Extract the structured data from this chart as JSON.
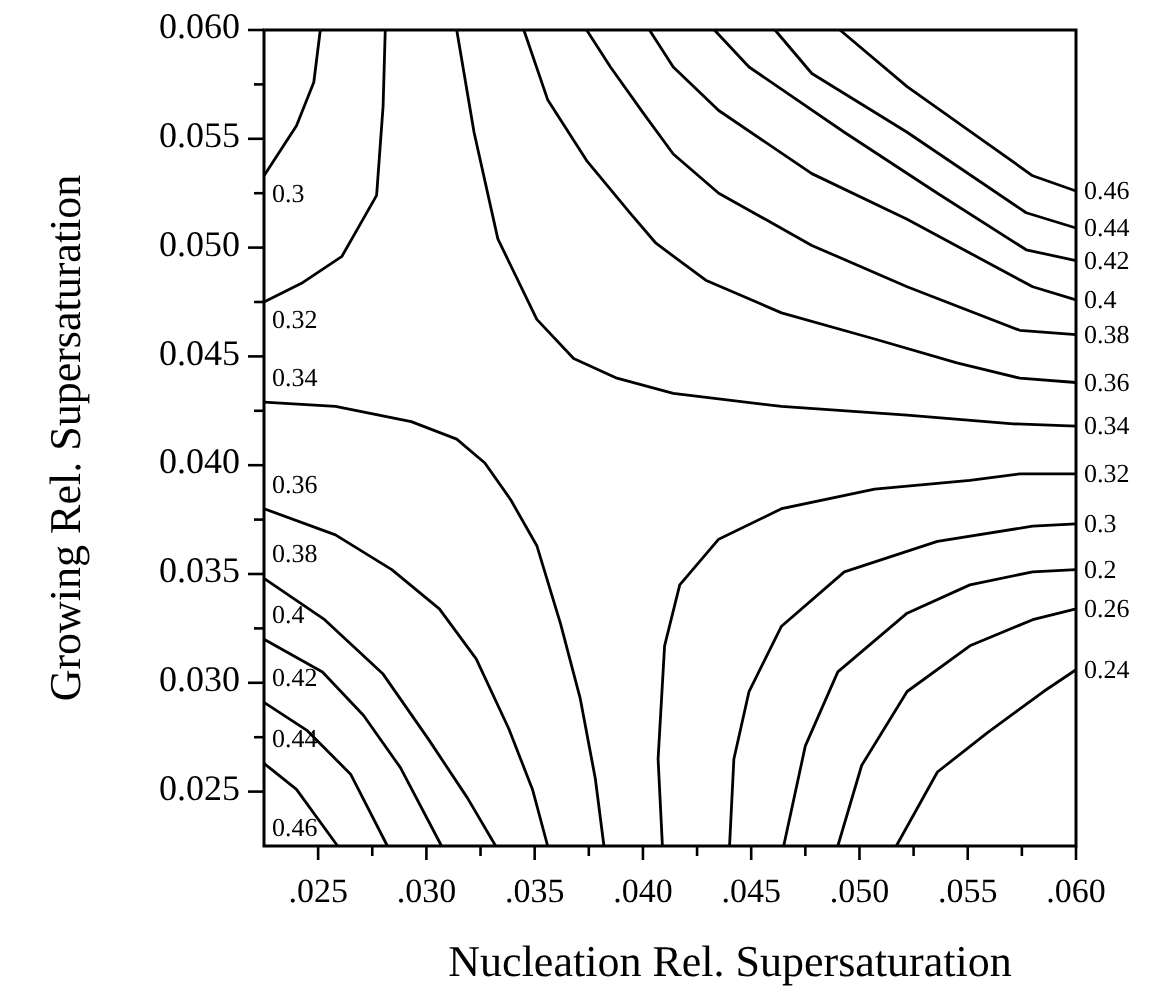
{
  "chart_data": {
    "type": "line",
    "xlabel": "Nucleation Rel. Supersaturation",
    "ylabel": "Growing Rel. Supersaturation",
    "annotations": [
      "0.46"
    ],
    "xlim": [
      0.0225,
      0.06
    ],
    "ylim": [
      0.0225,
      0.06
    ],
    "xticks": [
      {
        "value": 0.025,
        "label": ".025"
      },
      {
        "value": 0.0275,
        "label": null
      },
      {
        "value": 0.03,
        "label": ".030"
      },
      {
        "value": 0.0325,
        "label": null
      },
      {
        "value": 0.035,
        "label": ".035"
      },
      {
        "value": 0.0375,
        "label": null
      },
      {
        "value": 0.04,
        "label": ".040"
      },
      {
        "value": 0.0425,
        "label": null
      },
      {
        "value": 0.045,
        "label": ".045"
      },
      {
        "value": 0.0475,
        "label": null
      },
      {
        "value": 0.05,
        "label": ".050"
      },
      {
        "value": 0.0525,
        "label": null
      },
      {
        "value": 0.055,
        "label": ".055"
      },
      {
        "value": 0.0575,
        "label": null
      },
      {
        "value": 0.06,
        "label": ".060"
      }
    ],
    "yticks": [
      {
        "value": 0.025,
        "label": "0.025"
      },
      {
        "value": 0.0275,
        "label": null
      },
      {
        "value": 0.03,
        "label": "0.030"
      },
      {
        "value": 0.0325,
        "label": null
      },
      {
        "value": 0.035,
        "label": "0.035"
      },
      {
        "value": 0.0375,
        "label": null
      },
      {
        "value": 0.04,
        "label": "0.040"
      },
      {
        "value": 0.0425,
        "label": null
      },
      {
        "value": 0.045,
        "label": "0.045"
      },
      {
        "value": 0.0475,
        "label": null
      },
      {
        "value": 0.05,
        "label": "0.050"
      },
      {
        "value": 0.0525,
        "label": null
      },
      {
        "value": 0.055,
        "label": "0.055"
      },
      {
        "value": 0.0575,
        "label": null
      },
      {
        "value": 0.06,
        "label": "0.060"
      }
    ],
    "series": [
      {
        "name": "0.3",
        "color": "#000000",
        "x": [
          0.0225,
          0.024,
          0.0248,
          0.0251,
          null,
          0.06,
          0.058,
          0.0536,
          0.0493,
          0.0464,
          0.0449,
          0.0442,
          0.044
        ],
        "values": [
          0.0533,
          0.0556,
          0.0576,
          0.06,
          null,
          0.0373,
          0.0372,
          0.0365,
          0.0351,
          0.0326,
          0.0296,
          0.0265,
          0.0225
        ]
      },
      {
        "name": "0.32",
        "color": "#000000",
        "x": [
          0.0225,
          0.0243,
          0.0261,
          0.0269,
          0.0277,
          0.028,
          0.0281,
          null,
          0.06,
          0.0574,
          0.0551,
          0.0507,
          0.0464,
          0.0435,
          0.0417,
          0.041,
          0.0407,
          0.0409
        ],
        "values": [
          0.0475,
          0.0484,
          0.0496,
          0.051,
          0.0524,
          0.0565,
          0.06,
          null,
          0.0396,
          0.0396,
          0.0393,
          0.0389,
          0.038,
          0.0366,
          0.0345,
          0.0317,
          0.0265,
          0.0225
        ]
      },
      {
        "name": "0.34",
        "color": "#000000",
        "x": [
          0.0225,
          0.0258,
          0.0293,
          0.0314,
          0.0327,
          0.0339,
          0.0351,
          0.0362,
          0.0371,
          0.0378,
          0.0382,
          null,
          0.06,
          0.0571,
          0.0522,
          0.0464,
          0.0414,
          0.0388,
          0.0368,
          0.0351,
          0.0333,
          0.0322,
          0.0314
        ],
        "values": [
          0.0429,
          0.0427,
          0.042,
          0.0412,
          0.0401,
          0.0384,
          0.0363,
          0.0327,
          0.0293,
          0.0256,
          0.0225,
          null,
          0.0418,
          0.0419,
          0.0423,
          0.0427,
          0.0433,
          0.044,
          0.0449,
          0.0467,
          0.0504,
          0.0553,
          0.06
        ]
      },
      {
        "name": "0.36",
        "color": "#000000",
        "x": [
          0.0225,
          0.0258,
          0.0284,
          0.0306,
          0.0323,
          0.0338,
          0.0349,
          0.0356,
          null,
          0.06,
          0.0574,
          0.0545,
          0.0507,
          0.0464,
          0.0429,
          0.0406,
          0.0394,
          0.0374,
          0.0356,
          0.0345
        ],
        "values": [
          0.038,
          0.0368,
          0.0352,
          0.0334,
          0.0311,
          0.0279,
          0.0251,
          0.0225,
          null,
          0.0438,
          0.044,
          0.0447,
          0.0458,
          0.047,
          0.0485,
          0.0502,
          0.0516,
          0.054,
          0.0568,
          0.06
        ]
      },
      {
        "name": "0.38",
        "color": "#000000",
        "x": [
          0.0225,
          0.0253,
          0.028,
          0.0301,
          0.0319,
          0.0332,
          null,
          0.06,
          0.0574,
          0.0522,
          0.0478,
          0.0435,
          0.0414,
          0.04,
          0.0385,
          0.0374
        ],
        "values": [
          0.0348,
          0.0329,
          0.0304,
          0.0274,
          0.0247,
          0.0225,
          null,
          0.046,
          0.0462,
          0.0482,
          0.0501,
          0.0525,
          0.0543,
          0.0562,
          0.0583,
          0.06
        ]
      },
      {
        "name": "0.4",
        "color": "#000000",
        "x": [
          0.0225,
          0.0252,
          0.0271,
          0.0288,
          0.0307,
          null,
          0.06,
          0.058,
          0.0522,
          0.0478,
          0.0435,
          0.0414,
          0.0403
        ],
        "values": [
          0.032,
          0.0305,
          0.0285,
          0.0261,
          0.0225,
          null,
          0.0476,
          0.0482,
          0.0513,
          0.0534,
          0.0563,
          0.0583,
          0.06
        ]
      },
      {
        "name": "0.42",
        "color": "#000000",
        "x": [
          0.0225,
          0.0245,
          0.0265,
          0.0282,
          null,
          0.06,
          0.0577,
          0.0536,
          0.0493,
          0.0449,
          0.0433
        ],
        "values": [
          0.0291,
          0.0278,
          0.0258,
          0.0225,
          null,
          0.0494,
          0.0499,
          0.0525,
          0.0553,
          0.0583,
          0.06
        ]
      },
      {
        "name": "0.44",
        "color": "#000000",
        "x": [
          0.0225,
          0.024,
          0.0259,
          null,
          0.06,
          0.0577,
          0.0522,
          0.0478,
          0.0461
        ],
        "values": [
          0.0263,
          0.0251,
          0.0225,
          null,
          0.0509,
          0.0516,
          0.0553,
          0.058,
          0.06
        ]
      },
      {
        "name": "0.46",
        "color": "#000000",
        "x": [
          0.06,
          0.058,
          0.0556,
          0.0522,
          0.0491
        ],
        "values": [
          0.0526,
          0.0533,
          0.055,
          0.0574,
          0.06
        ]
      },
      {
        "name": "0.2",
        "color": "#000000",
        "x": [
          0.06,
          0.058,
          0.0551,
          0.0522,
          0.049,
          0.0475,
          0.0465
        ],
        "values": [
          0.0352,
          0.0351,
          0.0345,
          0.0332,
          0.0305,
          0.0271,
          0.0225
        ]
      },
      {
        "name": "0.26",
        "color": "#000000",
        "x": [
          0.06,
          0.058,
          0.0551,
          0.0522,
          0.0501,
          0.049
        ],
        "values": [
          0.0334,
          0.0329,
          0.0317,
          0.0296,
          0.0262,
          0.0225
        ]
      },
      {
        "name": "0.24",
        "color": "#000000",
        "x": [
          0.06,
          0.0585,
          0.0559,
          0.0536,
          0.0517
        ],
        "values": [
          0.0306,
          0.0296,
          0.0277,
          0.0259,
          0.0225
        ]
      }
    ]
  }
}
